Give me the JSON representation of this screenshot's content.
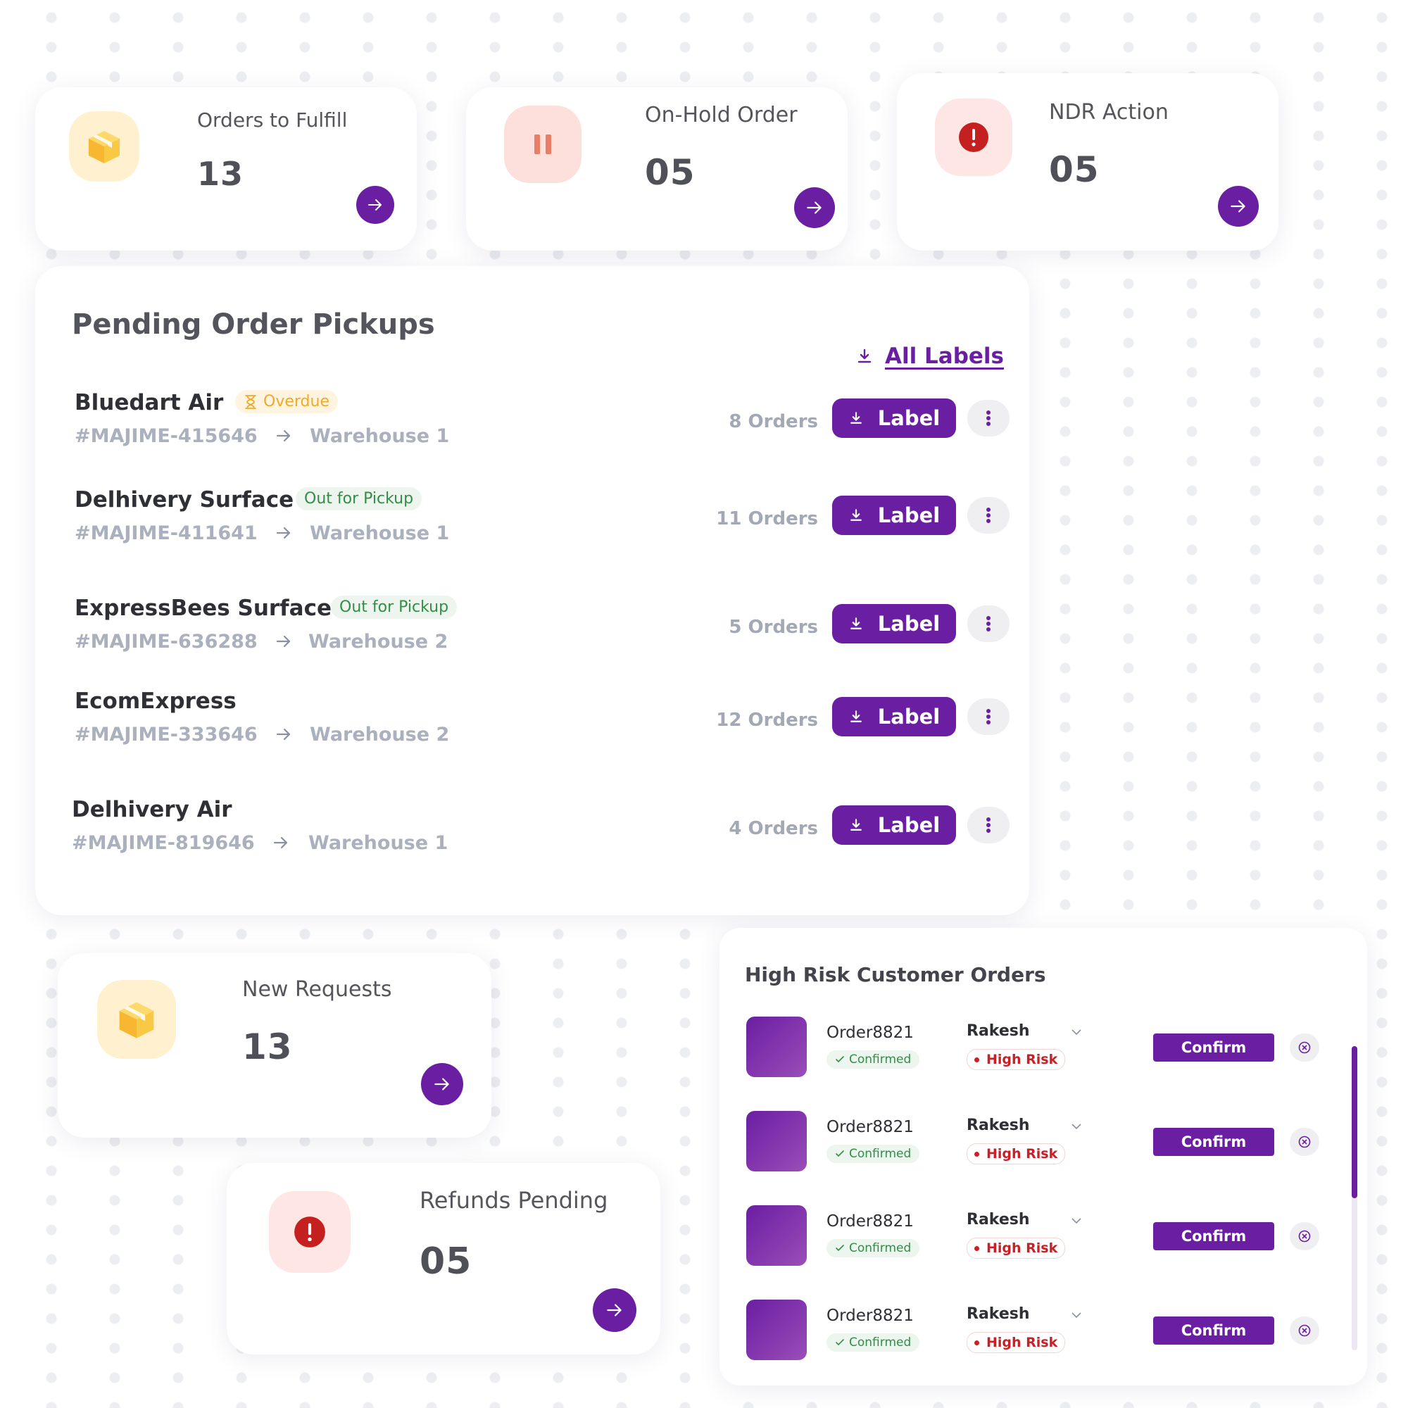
{
  "stats_top": [
    {
      "title": "Orders to Fulfill",
      "value": "13",
      "icon": "box-icon"
    },
    {
      "title": "On-Hold Order",
      "value": "05",
      "icon": "pause-icon"
    },
    {
      "title": "NDR Action",
      "value": "05",
      "icon": "alert-icon"
    }
  ],
  "pending": {
    "title": "Pending Order Pickups",
    "all_labels": "All Labels",
    "rows": [
      {
        "courier": "Bluedart Air",
        "status": "Overdue",
        "order_id": "#MAJIME-415646",
        "warehouse": "Warehouse 1",
        "orders": "8 Orders",
        "label": "Label"
      },
      {
        "courier": "Delhivery Surface",
        "status": "Out for Pickup",
        "order_id": "#MAJIME-411641",
        "warehouse": "Warehouse 1",
        "orders": "11 Orders",
        "label": "Label"
      },
      {
        "courier": "ExpressBees Surface",
        "status": "Out for Pickup",
        "order_id": "#MAJIME-636288",
        "warehouse": "Warehouse 2",
        "orders": "5 Orders",
        "label": "Label"
      },
      {
        "courier": "EcomExpress",
        "status": "",
        "order_id": "#MAJIME-333646",
        "warehouse": "Warehouse 2",
        "orders": "12 Orders",
        "label": "Label"
      },
      {
        "courier": "Delhivery Air",
        "status": "",
        "order_id": "#MAJIME-819646",
        "warehouse": "Warehouse 1",
        "orders": "4 Orders",
        "label": "Label"
      }
    ]
  },
  "new_requests": {
    "title": "New Requests",
    "value": "13",
    "icon": "box-icon"
  },
  "refunds": {
    "title": "Refunds Pending",
    "value": "05",
    "icon": "alert-icon"
  },
  "high_risk": {
    "title": "High Risk Customer Orders",
    "rows": [
      {
        "order": "Order8821",
        "status": "Confirmed",
        "customer": "Rakesh",
        "risk": "High Risk",
        "action": "Confirm"
      },
      {
        "order": "Order8821",
        "status": "Confirmed",
        "customer": "Rakesh",
        "risk": "High Risk",
        "action": "Confirm"
      },
      {
        "order": "Order8821",
        "status": "Confirmed",
        "customer": "Rakesh",
        "risk": "High Risk",
        "action": "Confirm"
      },
      {
        "order": "Order8821",
        "status": "Confirmed",
        "customer": "Rakesh",
        "risk": "High Risk",
        "action": "Confirm"
      }
    ]
  },
  "colors": {
    "accent": "#6a1fa3",
    "risk": "#c91f26",
    "success": "#2f8f47",
    "warning": "#f0a928"
  }
}
